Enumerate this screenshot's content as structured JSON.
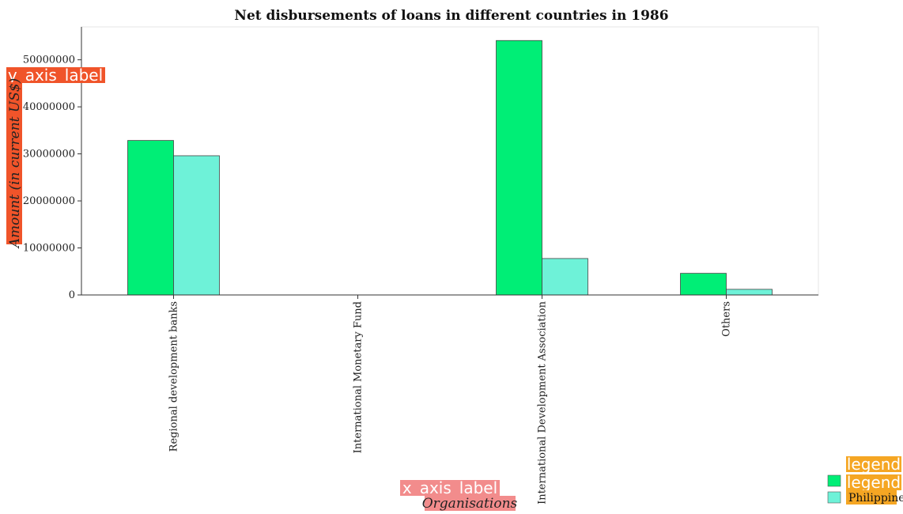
{
  "title": "Net disbursements of loans in different countries in 1986",
  "x_axis": {
    "label": "Organisations",
    "badge": "x_axis_label"
  },
  "y_axis": {
    "label": "Amount (in current US$)",
    "badge": "y_axis_label"
  },
  "legend": {
    "badge_top": "legend",
    "badge_mid": "legend",
    "items": [
      {
        "label": "",
        "color": "#00ee76"
      },
      {
        "label": "Philippines",
        "color": "#6ef2d8"
      }
    ]
  },
  "colors": {
    "series_1": "#00ee76",
    "series_2": "#6ef2d8",
    "badge_orange": "#f5a623",
    "badge_red": "#f0542a",
    "badge_pink": "#f28c8c"
  },
  "chart_data": {
    "type": "bar",
    "title": "Net disbursements of loans in different countries in 1986",
    "xlabel": "Organisations",
    "ylabel": "Amount (in current US$)",
    "categories": [
      "Regional development banks",
      "International Monetary Fund",
      "International Development Association",
      "Others"
    ],
    "series": [
      {
        "name": "",
        "values": [
          32850000,
          0,
          54100000,
          4600000
        ]
      },
      {
        "name": "Philippines",
        "values": [
          29600000,
          0,
          7750000,
          1200000
        ]
      }
    ],
    "ylim": [
      0,
      57000000
    ],
    "yticks": [
      0,
      10000000,
      20000000,
      30000000,
      40000000,
      50000000
    ],
    "ytick_labels": [
      "0",
      "10000000",
      "20000000",
      "30000000",
      "40000000",
      "50000000"
    ],
    "grid": false,
    "legend_position": "bottom-right"
  }
}
